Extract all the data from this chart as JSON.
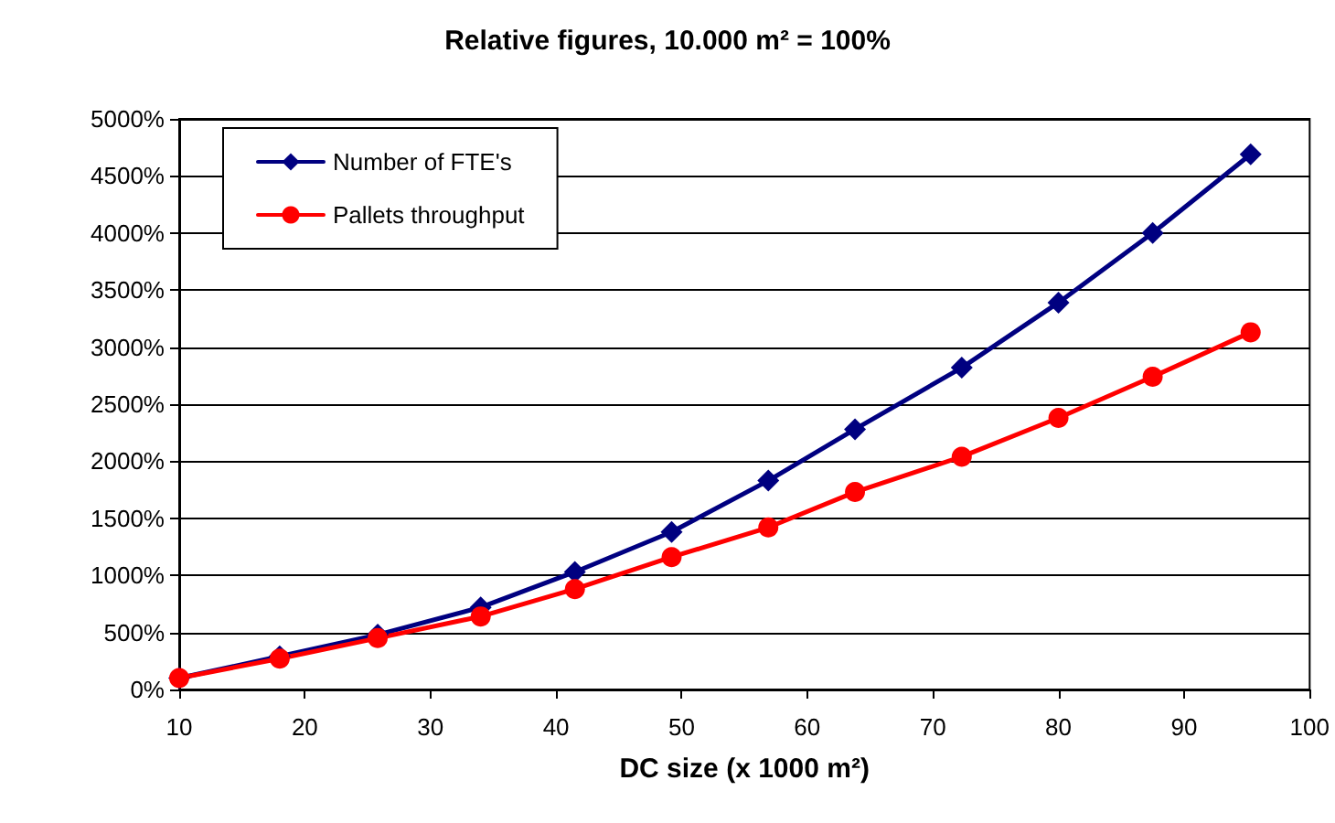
{
  "chart_data": {
    "type": "line",
    "title": "Relative figures, 10.000 m² = 100%",
    "xlabel": "DC size (x 1000 m²)",
    "x": [
      10,
      18,
      25.8,
      34,
      41.5,
      49.2,
      56.9,
      63.8,
      72.3,
      80,
      87.5,
      95.3
    ],
    "series": [
      {
        "name": "Number of FTE's",
        "color": "#000080",
        "marker": "diamond",
        "values": [
          100,
          290,
          480,
          720,
          1030,
          1380,
          1830,
          2280,
          2820,
          3390,
          4000,
          4690
        ]
      },
      {
        "name": "Pallets throughput",
        "color": "#ff0000",
        "marker": "circle",
        "values": [
          100,
          270,
          450,
          640,
          880,
          1160,
          1420,
          1730,
          2040,
          2380,
          2740,
          3130
        ]
      }
    ],
    "xlim": [
      10,
      100
    ],
    "xticks": [
      10,
      20,
      30,
      40,
      50,
      60,
      70,
      80,
      90,
      100
    ],
    "ylim": [
      0,
      5000
    ],
    "yticks": [
      {
        "value": 0,
        "label": "0%"
      },
      {
        "value": 500,
        "label": "500%"
      },
      {
        "value": 1000,
        "label": "1000%"
      },
      {
        "value": 1500,
        "label": "1500%"
      },
      {
        "value": 2000,
        "label": "2000%"
      },
      {
        "value": 2500,
        "label": "2500%"
      },
      {
        "value": 3000,
        "label": "3000%"
      },
      {
        "value": 3500,
        "label": "3500%"
      },
      {
        "value": 4000,
        "label": "4000%"
      },
      {
        "value": 4500,
        "label": "4500%"
      },
      {
        "value": 5000,
        "label": "5000%"
      }
    ],
    "grid": "y",
    "legend": "top left",
    "line_style": "solid"
  }
}
